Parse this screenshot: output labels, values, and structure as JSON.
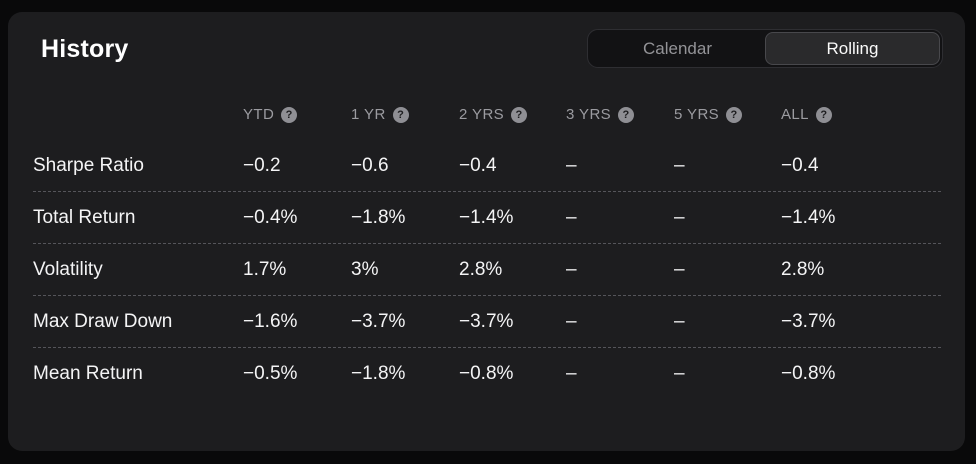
{
  "panel": {
    "title": "History",
    "toggle": {
      "options": [
        {
          "label": "Calendar",
          "selected": false
        },
        {
          "label": "Rolling",
          "selected": true
        }
      ]
    }
  },
  "icons": {
    "help_glyph": "?"
  },
  "table": {
    "columns": [
      {
        "label": "YTD"
      },
      {
        "label": "1 YR"
      },
      {
        "label": "2 YRS"
      },
      {
        "label": "3 YRS"
      },
      {
        "label": "5 YRS"
      },
      {
        "label": "ALL"
      }
    ],
    "rows": [
      {
        "label": "Sharpe Ratio",
        "values": [
          "−0.2",
          "−0.6",
          "−0.4",
          "–",
          "–",
          "−0.4"
        ]
      },
      {
        "label": "Total Return",
        "values": [
          "−0.4%",
          "−1.8%",
          "−1.4%",
          "–",
          "–",
          "−1.4%"
        ]
      },
      {
        "label": "Volatility",
        "values": [
          "1.7%",
          "3%",
          "2.8%",
          "–",
          "–",
          "2.8%"
        ]
      },
      {
        "label": "Max Draw Down",
        "values": [
          "−1.6%",
          "−3.7%",
          "−3.7%",
          "–",
          "–",
          "−3.7%"
        ]
      },
      {
        "label": "Mean Return",
        "values": [
          "−0.5%",
          "−1.8%",
          "−0.8%",
          "–",
          "–",
          "−0.8%"
        ]
      }
    ]
  }
}
